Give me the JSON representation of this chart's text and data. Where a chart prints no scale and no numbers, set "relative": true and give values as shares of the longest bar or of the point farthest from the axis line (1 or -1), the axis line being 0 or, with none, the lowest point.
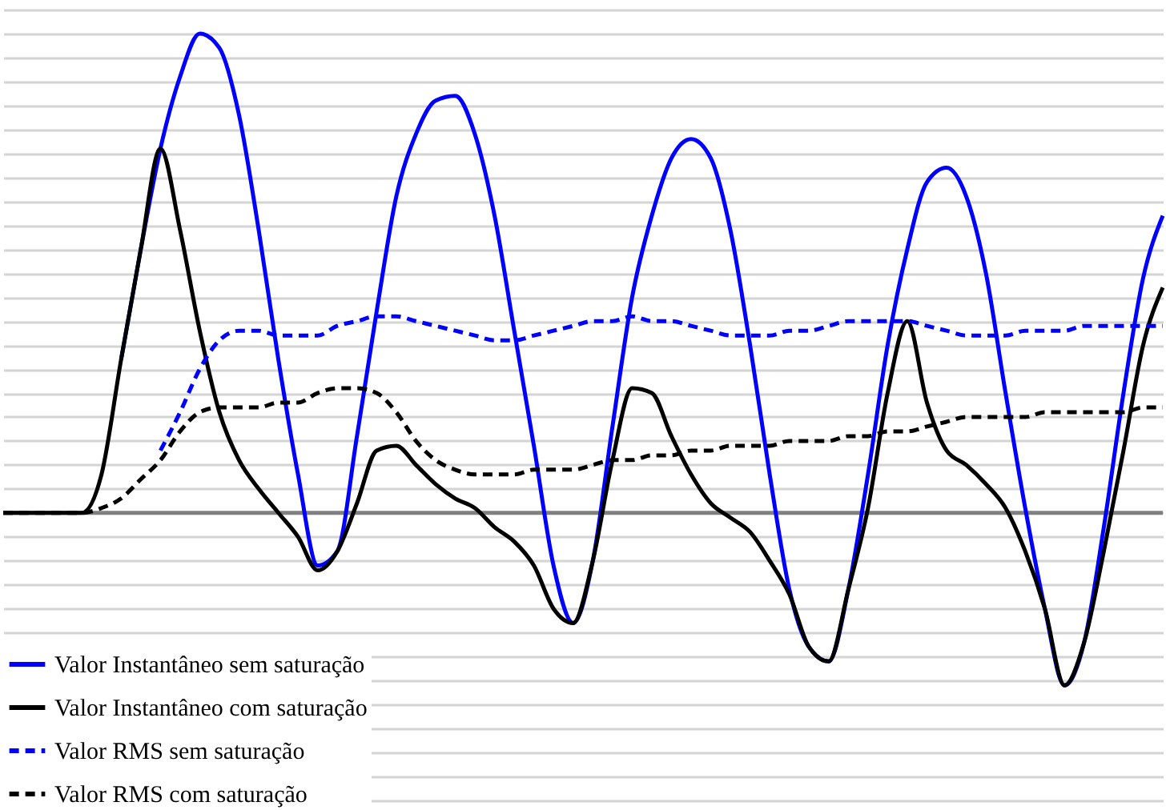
{
  "chart_data": {
    "type": "line",
    "relative": true,
    "grid": "y",
    "legend": "bottom left",
    "categories": [
      null,
      null,
      null,
      null,
      null,
      null,
      null,
      null,
      null,
      null,
      null,
      null,
      null,
      null,
      null,
      null,
      null,
      null,
      null,
      null,
      null,
      null,
      null,
      null,
      null,
      null,
      null,
      null,
      null,
      null,
      null,
      null,
      null,
      null,
      null,
      null,
      null,
      null,
      null,
      null,
      null,
      null,
      null,
      null,
      null,
      null,
      null,
      null,
      null,
      null,
      null,
      null,
      null,
      null,
      null,
      null,
      null,
      null,
      null,
      null
    ],
    "series": [
      {
        "name": "Valor Instantâneo sem saturação",
        "color": "#0000ff",
        "line_style": "solid",
        "values": [
          null,
          null,
          null,
          null,
          null,
          null,
          0.32,
          0.55,
          0.76,
          0.91,
          1.0,
          0.97,
          0.83,
          0.59,
          0.32,
          0.08,
          -0.11,
          -0.08,
          0.16,
          0.42,
          0.66,
          0.79,
          0.86,
          0.87,
          0.79,
          0.62,
          0.38,
          0.14,
          -0.11,
          -0.23,
          -0.1,
          0.18,
          0.45,
          0.62,
          0.74,
          0.78,
          0.74,
          0.59,
          0.35,
          0.08,
          -0.16,
          -0.28,
          -0.31,
          -0.16,
          0.08,
          0.35,
          0.55,
          0.69,
          0.72,
          0.66,
          0.5,
          0.25,
          0.01,
          -0.2,
          -0.36,
          -0.27,
          -0.03,
          0.25,
          0.49,
          0.62
        ]
      },
      {
        "name": "Valor Instantâneo com saturação",
        "color": "#000000",
        "line_style": "solid",
        "values": [
          0,
          0,
          0,
          0,
          0,
          0.08,
          0.32,
          0.55,
          0.76,
          0.59,
          0.38,
          0.21,
          0.11,
          0.05,
          0,
          -0.05,
          -0.12,
          -0.08,
          0.02,
          0.13,
          0.14,
          0.1,
          0.06,
          0.03,
          0.01,
          -0.03,
          -0.06,
          -0.11,
          -0.2,
          -0.23,
          -0.1,
          0.11,
          0.26,
          0.25,
          0.16,
          0.08,
          0.02,
          -0.01,
          -0.04,
          -0.1,
          -0.17,
          -0.28,
          -0.31,
          -0.16,
          0.01,
          0.25,
          0.4,
          0.23,
          0.13,
          0.1,
          0.06,
          0.01,
          -0.08,
          -0.2,
          -0.36,
          -0.27,
          -0.08,
          0.13,
          0.35,
          0.47
        ]
      },
      {
        "name": "Valor RMS sem saturação",
        "color": "#0000ff",
        "line_style": "dashed",
        "values": [
          null,
          null,
          null,
          null,
          null,
          null,
          null,
          null,
          0.13,
          0.21,
          0.3,
          0.36,
          0.38,
          0.38,
          0.37,
          0.37,
          0.37,
          0.39,
          0.4,
          0.41,
          0.41,
          0.4,
          0.39,
          0.38,
          0.37,
          0.36,
          0.36,
          0.37,
          0.38,
          0.39,
          0.4,
          0.4,
          0.41,
          0.4,
          0.4,
          0.39,
          0.38,
          0.37,
          0.37,
          0.37,
          0.38,
          0.38,
          0.39,
          0.4,
          0.4,
          0.4,
          0.4,
          0.39,
          0.38,
          0.37,
          0.37,
          0.37,
          0.38,
          0.38,
          0.38,
          0.39,
          0.39,
          0.39,
          0.39,
          0.39
        ]
      },
      {
        "name": "Valor RMS com saturação",
        "color": "#000000",
        "line_style": "dashed",
        "values": [
          0,
          0,
          0,
          0,
          0,
          0.01,
          0.03,
          0.07,
          0.11,
          0.17,
          0.21,
          0.22,
          0.22,
          0.22,
          0.23,
          0.23,
          0.25,
          0.26,
          0.26,
          0.25,
          0.21,
          0.15,
          0.11,
          0.09,
          0.08,
          0.08,
          0.08,
          0.09,
          0.09,
          0.09,
          0.1,
          0.11,
          0.11,
          0.12,
          0.12,
          0.13,
          0.13,
          0.14,
          0.14,
          0.14,
          0.15,
          0.15,
          0.15,
          0.16,
          0.16,
          0.17,
          0.17,
          0.18,
          0.19,
          0.2,
          0.2,
          0.2,
          0.2,
          0.21,
          0.21,
          0.21,
          0.21,
          0.21,
          0.22,
          0.22
        ]
      }
    ]
  }
}
